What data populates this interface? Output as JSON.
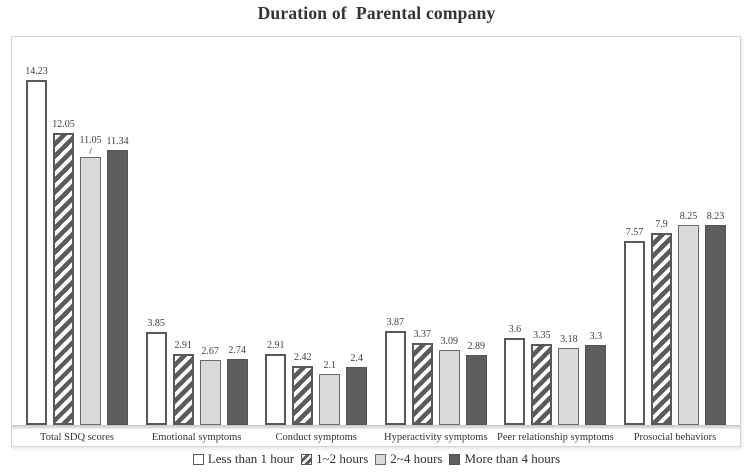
{
  "chart_data": {
    "type": "bar",
    "title": "Duration of  Parental company",
    "categories": [
      "Total SDQ scores",
      "Emotional symptoms",
      "Conduct symptoms",
      "Hyperactivity symptoms",
      "Peer relationship symptoms",
      "Prosocial behaviors"
    ],
    "series": [
      {
        "name": "Less than 1 hour",
        "pattern": "outline-white",
        "values": [
          14.23,
          3.85,
          2.91,
          3.87,
          3.6,
          7.57
        ]
      },
      {
        "name": "1~2 hours",
        "pattern": "diagonal-hatch",
        "values": [
          12.05,
          2.91,
          2.42,
          3.37,
          3.35,
          7.9
        ]
      },
      {
        "name": "2~4 hours",
        "pattern": "solid-light-gray",
        "values": [
          11.05,
          2.67,
          2.1,
          3.09,
          3.18,
          8.25
        ]
      },
      {
        "name": "More than 4 hours",
        "pattern": "solid-dark-gray",
        "values": [
          11.34,
          2.74,
          2.4,
          2.89,
          3.3,
          8.23
        ]
      }
    ],
    "ylim": [
      0,
      16
    ],
    "grid": false,
    "legend_position": "bottom",
    "value_labels": true,
    "callout_label": {
      "category_index": 0,
      "series_index": 2
    }
  },
  "colors": {
    "bar_outline": "#595959",
    "hatch_stripe": "#5a5a5a",
    "light_gray_fill": "#d9d9d9",
    "dark_gray_fill": "#5e5e5e",
    "plot_border": "#d6d6d6",
    "baseline_strip": "#c6c6c6",
    "text": "#333333"
  }
}
